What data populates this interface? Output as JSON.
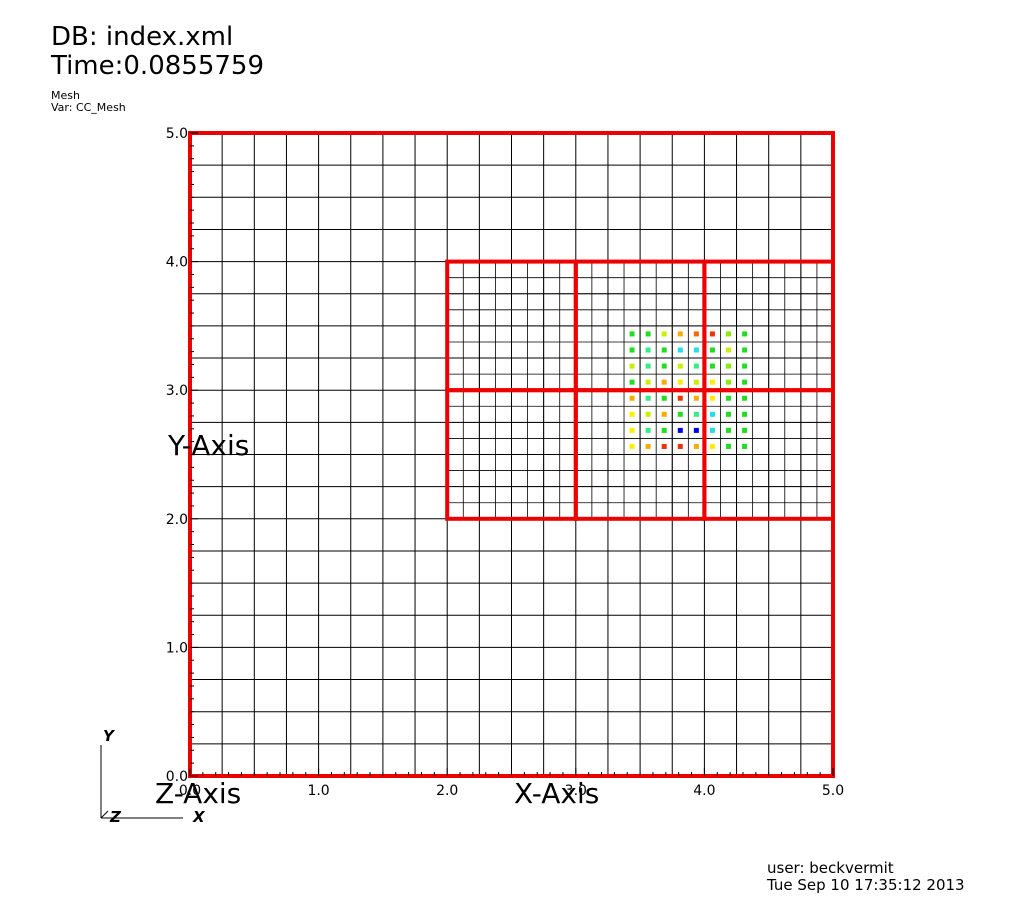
{
  "header": {
    "db": "DB: index.xml",
    "time": "Time:0.0855759",
    "plot_name": "Mesh",
    "var": "Var: CC_Mesh"
  },
  "footer": {
    "user": "user: beckvermit",
    "date": "Tue Sep 10 17:35:12 2013"
  },
  "triad": {
    "y": "Y",
    "z": "Z",
    "x": "X"
  },
  "chart_data": {
    "type": "heatmap",
    "title": "",
    "xlabel": "X-Axis",
    "ylabel": "Y-Axis",
    "zlabel": "Z-Axis",
    "xlim": [
      0.0,
      5.0
    ],
    "ylim": [
      0.0,
      5.0
    ],
    "x_ticks": [
      "0.0",
      "1.0",
      "2.0",
      "3.0",
      "4.0",
      "5.0"
    ],
    "y_ticks": [
      "0.0",
      "1.0",
      "2.0",
      "3.0",
      "4.0",
      "5.0"
    ],
    "coarse_cell_size": 0.25,
    "fine_cell_size": 0.125,
    "patches": [
      {
        "x0": 0.0,
        "y0": 0.0,
        "x1": 5.0,
        "y1": 5.0
      },
      {
        "x0": 2.0,
        "y0": 3.0,
        "x1": 3.0,
        "y1": 4.0
      },
      {
        "x0": 3.0,
        "y0": 3.0,
        "x1": 4.0,
        "y1": 4.0
      },
      {
        "x0": 4.0,
        "y0": 3.0,
        "x1": 5.0,
        "y1": 4.0
      },
      {
        "x0": 2.0,
        "y0": 2.0,
        "x1": 3.0,
        "y1": 3.0
      },
      {
        "x0": 3.0,
        "y0": 2.0,
        "x1": 4.0,
        "y1": 3.0
      },
      {
        "x0": 4.0,
        "y0": 2.0,
        "x1": 5.0,
        "y1": 3.0
      }
    ],
    "markers": {
      "x": [
        3.4375,
        3.5625,
        3.6875,
        3.8125,
        3.9375,
        4.0625,
        4.1875,
        4.3125
      ],
      "y": [
        3.4375,
        3.3125,
        3.1875,
        3.0625,
        2.9375,
        2.8125,
        2.6875,
        2.5625
      ],
      "colors": [
        [
          "#22dd22",
          "#22dd22",
          "#ccee00",
          "#ffaa00",
          "#ff6600",
          "#ee3300",
          "#88ee00",
          "#22dd22"
        ],
        [
          "#22dd22",
          "#33ee88",
          "#22dd22",
          "#22ddee",
          "#22ddee",
          "#22dd22",
          "#ccee00",
          "#22dd22"
        ],
        [
          "#ccee00",
          "#33ee88",
          "#22dd22",
          "#ccee00",
          "#33ee88",
          "#22dd22",
          "#88ee00",
          "#22dd22"
        ],
        [
          "#22dd22",
          "#ccee00",
          "#ffaa00",
          "#ffee00",
          "#ccee00",
          "#ffee00",
          "#88ee00",
          "#22dd22"
        ],
        [
          "#ffaa00",
          "#33ee88",
          "#22dd22",
          "#ee3300",
          "#ffaa00",
          "#ffee00",
          "#22dd22",
          "#22dd22"
        ],
        [
          "#ffee00",
          "#ccee00",
          "#ffaa00",
          "#22dd22",
          "#33ee88",
          "#22ddee",
          "#22dd22",
          "#22dd22"
        ],
        [
          "#ffee00",
          "#33ee88",
          "#22dd22",
          "#0000ee",
          "#0000ee",
          "#22ddee",
          "#22dd22",
          "#22dd22"
        ],
        [
          "#ffee00",
          "#ffaa00",
          "#ee3300",
          "#ee3300",
          "#ffaa00",
          "#ffee00",
          "#22dd22",
          "#22dd22"
        ]
      ]
    }
  }
}
